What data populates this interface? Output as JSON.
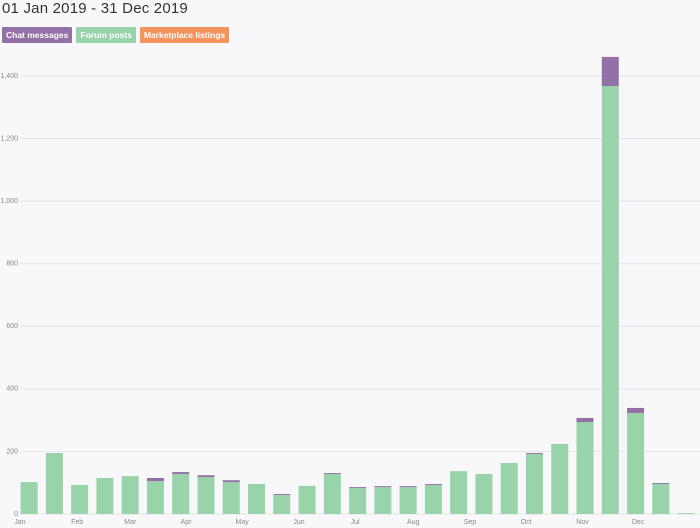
{
  "chart_data": {
    "type": "stacked-bar",
    "title": "01 Jan 2019 - 31 Dec 2019",
    "categories": [
      null,
      null,
      null,
      null,
      null,
      null,
      null,
      null,
      null,
      null,
      null,
      null,
      null,
      null,
      null,
      null,
      null,
      null,
      null,
      null,
      null,
      null,
      null,
      null,
      null,
      null,
      null
    ],
    "series": [
      {
        "name": "Chat messages",
        "color": "#9370a5",
        "values": [
          0,
          0,
          0,
          0,
          0,
          10,
          6,
          6,
          6,
          0,
          3,
          0,
          3,
          3,
          3,
          3,
          3,
          0,
          0,
          0,
          3,
          0,
          13,
          93,
          16,
          3,
          0
        ]
      },
      {
        "name": "Forum posts",
        "color": "#98d3aa",
        "values": [
          102,
          195,
          93,
          115,
          121,
          105,
          128,
          118,
          102,
          96,
          61,
          90,
          128,
          83,
          86,
          86,
          93,
          137,
          128,
          163,
          192,
          224,
          294,
          1368,
          323,
          96,
          3
        ]
      },
      {
        "name": "Marketplace listings",
        "color": "#f4935e",
        "values": [
          0,
          0,
          0,
          0,
          0,
          0,
          0,
          0,
          0,
          0,
          0,
          0,
          0,
          0,
          0,
          0,
          0,
          0,
          0,
          0,
          0,
          0,
          0,
          0,
          0,
          0,
          0
        ]
      }
    ],
    "ylim": [
      0,
      1400
    ],
    "yticks": [
      0,
      200,
      400,
      600,
      800,
      {
        "value": 1000,
        "label": "1,000"
      },
      {
        "value": 1200,
        "label": "1,200"
      },
      {
        "value": 1400,
        "label": "1,400"
      }
    ],
    "xlim": [
      -0.36,
      26.55
    ],
    "xticks": [
      {
        "value": -0.36,
        "label": "Jan"
      },
      {
        "value": 1.9,
        "label": "Feb"
      },
      {
        "value": 4.0,
        "label": "Mar"
      },
      {
        "value": 6.21,
        "label": "Apr"
      },
      {
        "value": 8.43,
        "label": "May"
      },
      {
        "value": 10.68,
        "label": "Jun"
      },
      {
        "value": 12.9,
        "label": "Jul"
      },
      {
        "value": 15.2,
        "label": "Aug"
      },
      {
        "value": 17.45,
        "label": "Sep"
      },
      {
        "value": 19.67,
        "label": "Oct"
      },
      {
        "value": 21.9,
        "label": "Nov"
      },
      {
        "value": 24.1,
        "label": "Dec"
      }
    ],
    "grid": true
  }
}
